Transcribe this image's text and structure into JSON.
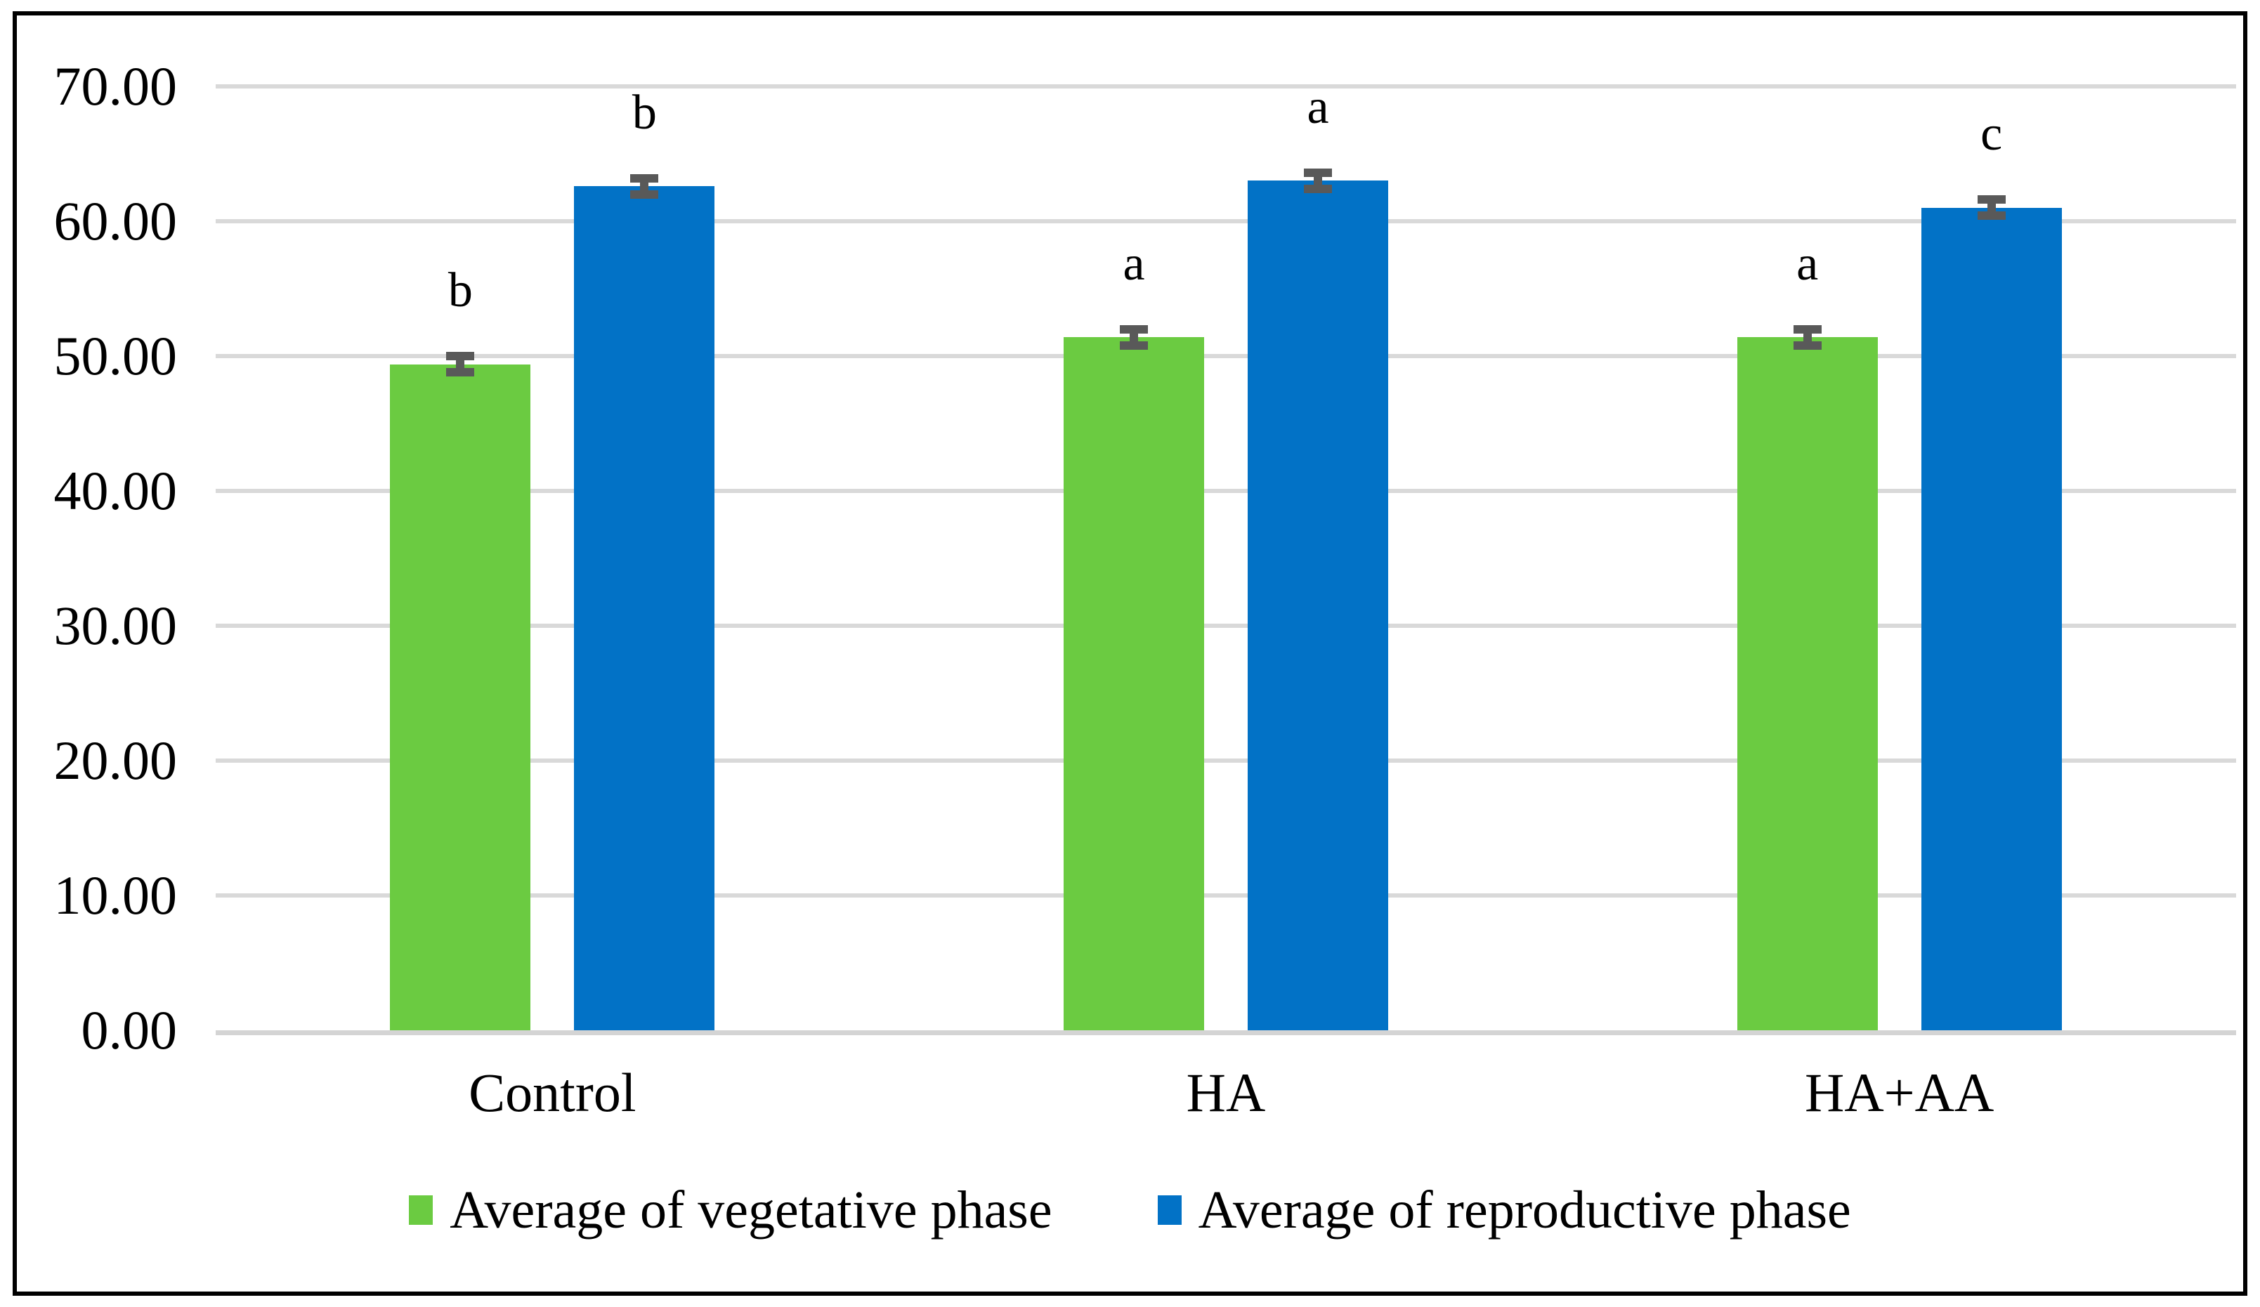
{
  "chart_data": {
    "type": "bar",
    "title": "",
    "categories": [
      "Control",
      "HA",
      "HA+AA"
    ],
    "series": [
      {
        "name": "Average of vegetative phase",
        "color": "#6BCB41",
        "values": [
          49.4,
          51.4,
          51.4
        ],
        "errors": [
          0.6,
          0.6,
          0.6
        ],
        "sig_letters": [
          "b",
          "a",
          "a"
        ]
      },
      {
        "name": "Average of reproductive phase",
        "color": "#0272C6",
        "values": [
          62.6,
          63.0,
          61.0
        ],
        "errors": [
          0.6,
          0.6,
          0.6
        ],
        "sig_letters": [
          "b",
          "a",
          "c"
        ]
      }
    ],
    "y_axis": {
      "min": 0,
      "max": 70,
      "step": 10,
      "tick_labels": [
        "0.00",
        "10.00",
        "20.00",
        "30.00",
        "40.00",
        "50.00",
        "60.00",
        "70.00"
      ]
    },
    "x_axis_label": "",
    "y_axis_label": "",
    "grid": true,
    "legend_position": "bottom",
    "annotations": "significance letters above error bars",
    "colors": {
      "gridline": "#D9D9D9",
      "baseline": "#D4D4D4",
      "error_bar": "#595959",
      "text": "#000000",
      "frame_border": "#000000",
      "background": "#FFFFFF"
    }
  }
}
